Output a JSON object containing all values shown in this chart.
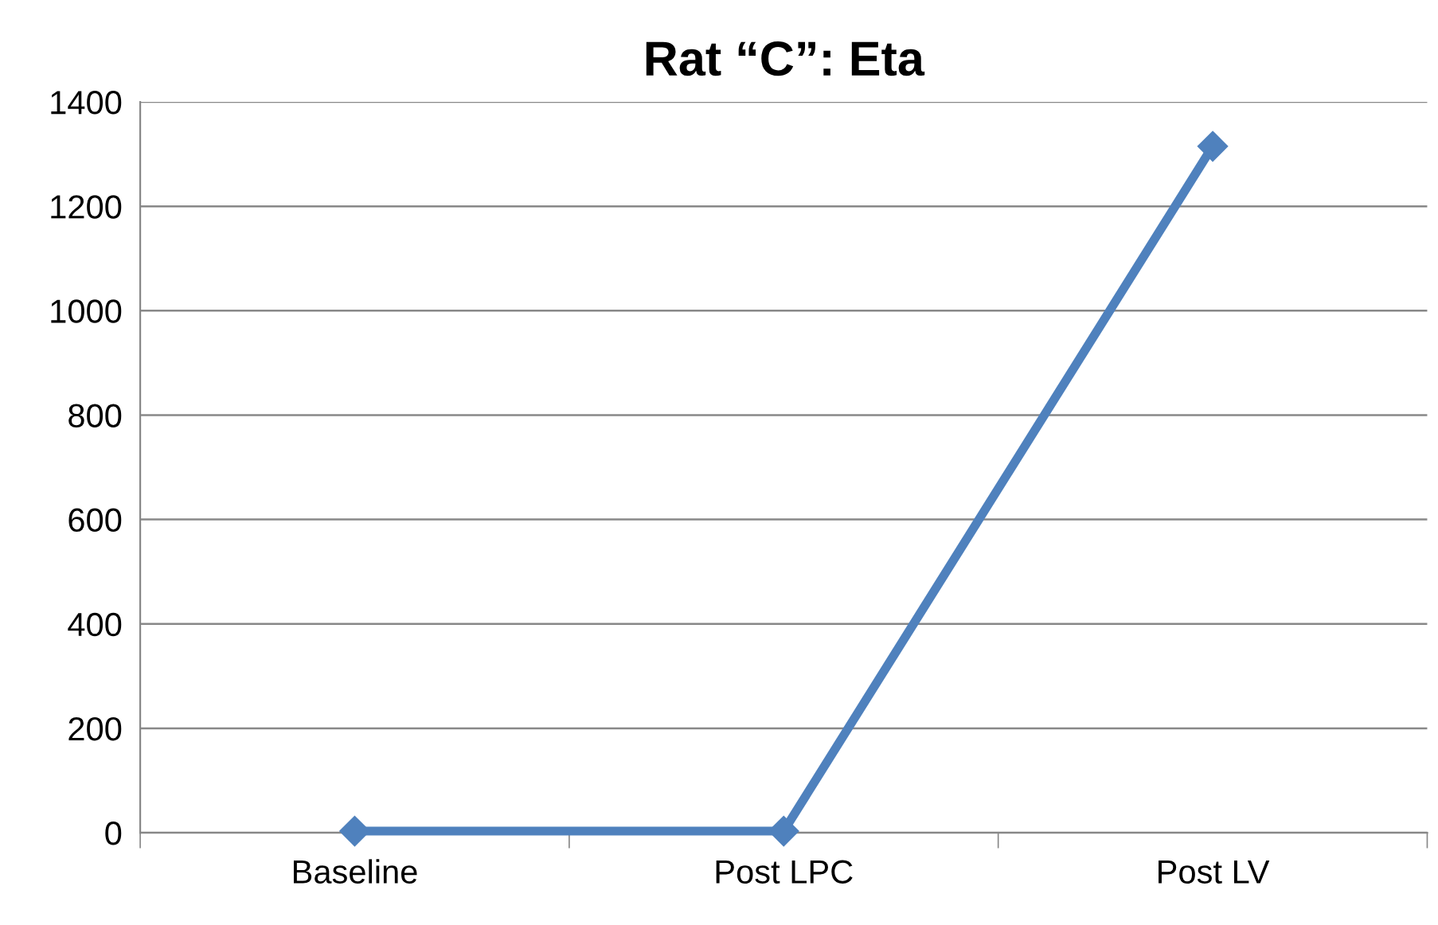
{
  "chart_data": {
    "type": "line",
    "title": "Rat “C”: Eta",
    "categories": [
      "Baseline",
      "Post LPC",
      "Post LV"
    ],
    "series": [
      {
        "color": "#4f81bd",
        "values": [
          3,
          3,
          1315
        ]
      }
    ],
    "ylim": [
      0,
      1400
    ],
    "yticks": [
      0,
      200,
      400,
      600,
      800,
      1000,
      1200,
      1400
    ],
    "grid": "y",
    "marker": "diamond",
    "line_style": "solid"
  }
}
